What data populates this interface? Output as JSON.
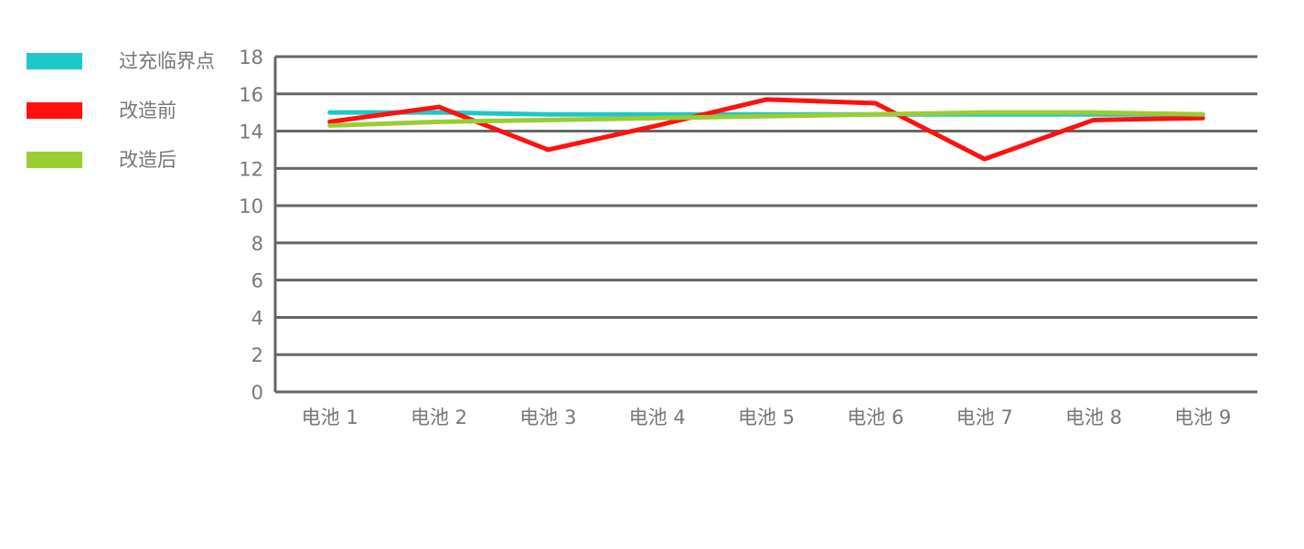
{
  "chart_data": {
    "type": "line",
    "categories": [
      "电池 1",
      "电池 2",
      "电池 3",
      "电池 4",
      "电池 5",
      "电池 6",
      "电池 7",
      "电池 8",
      "电池 9"
    ],
    "series": [
      {
        "name": "过充临界点",
        "color": "#1ec8c8",
        "values": [
          15,
          15,
          14.9,
          14.9,
          14.9,
          14.9,
          14.9,
          14.9,
          14.9
        ]
      },
      {
        "name": "改造前",
        "color": "#ff1010",
        "values": [
          14.5,
          15.3,
          13,
          14.3,
          15.7,
          15.5,
          12.5,
          14.6,
          14.7
        ]
      },
      {
        "name": "改造后",
        "color": "#9acd32",
        "values": [
          14.3,
          14.5,
          14.6,
          14.7,
          14.8,
          14.9,
          15,
          15,
          14.9
        ]
      }
    ],
    "ylim": [
      0,
      18
    ],
    "yticks": [
      0,
      2,
      4,
      6,
      8,
      10,
      12,
      14,
      16,
      18
    ],
    "grid": true,
    "legend": "left"
  }
}
